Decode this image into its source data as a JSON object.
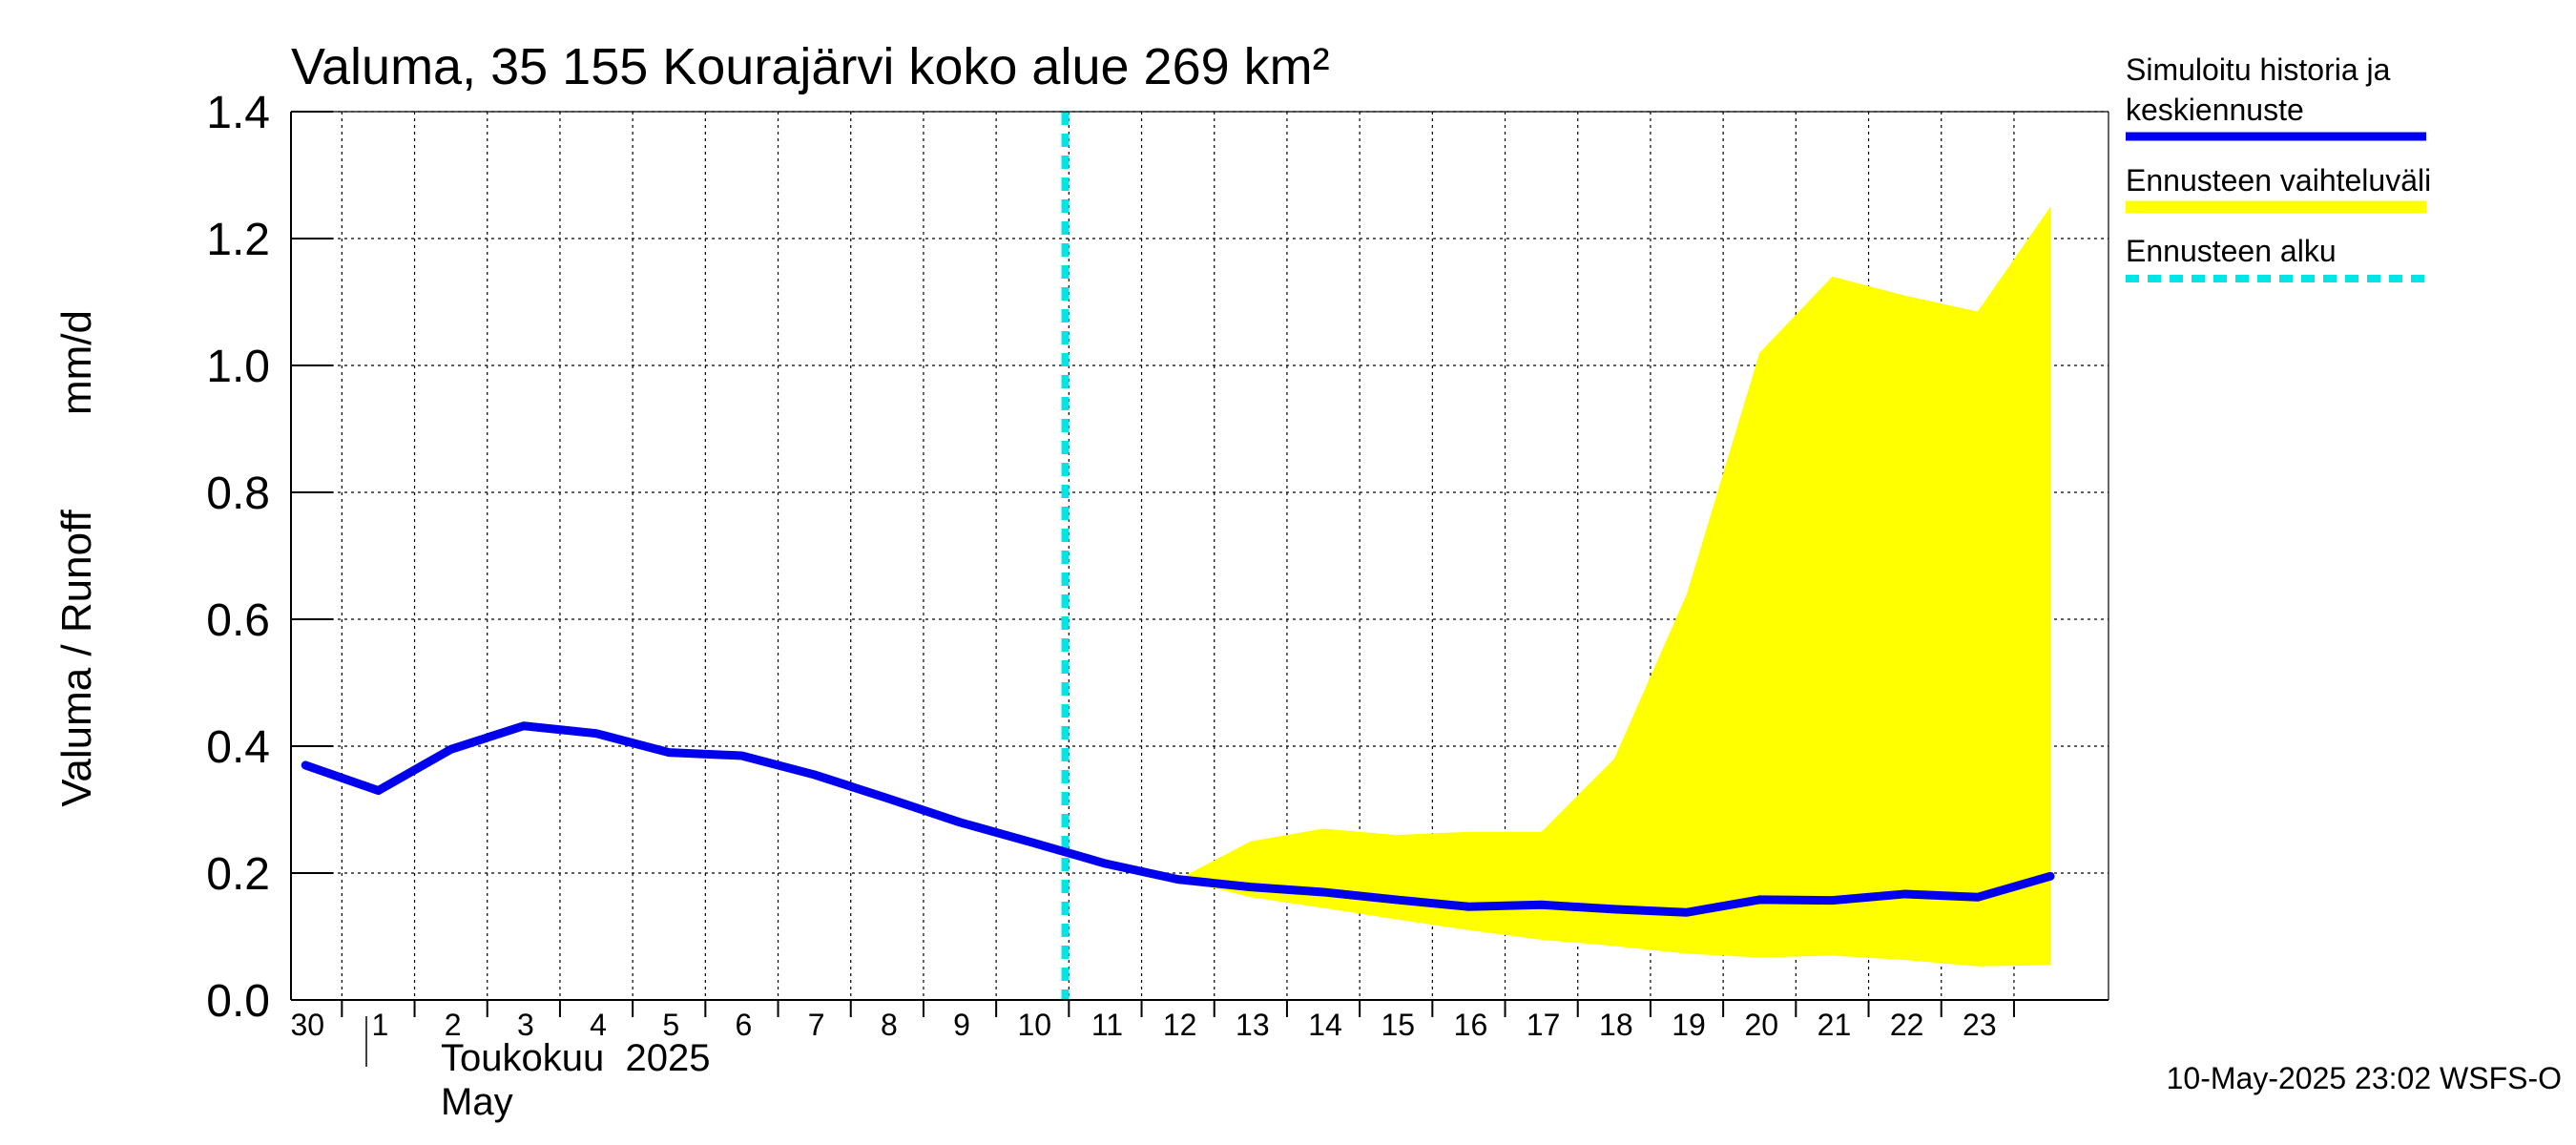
{
  "chart_data": {
    "type": "line",
    "title": "Valuma, 35 155 Kourajärvi koko alue 269 km²",
    "ylabel_left": "Valuma / Runoff",
    "ylabel_unit": "mm/d",
    "ylim": [
      0,
      1.4
    ],
    "yticks": [
      "0.0",
      "0.2",
      "0.4",
      "0.6",
      "0.8",
      "1.0",
      "1.2",
      "1.4"
    ],
    "grid": true,
    "x_tick_labels": [
      "30",
      "1",
      "2",
      "3",
      "4",
      "5",
      "6",
      "7",
      "8",
      "9",
      "10",
      "11",
      "12",
      "13",
      "14",
      "15",
      "16",
      "17",
      "18",
      "19",
      "20",
      "21",
      "22",
      "23"
    ],
    "month_label_fi": "Toukokuu  2025",
    "month_label_en": "May",
    "forecast_start_day": 10,
    "series": [
      {
        "name": "Simuloitu historia ja keskiennuste",
        "color": "#0000ee",
        "points": [
          [
            -1.0,
            0.37
          ],
          [
            0.0,
            0.33
          ],
          [
            1.0,
            0.395
          ],
          [
            2.0,
            0.432
          ],
          [
            3.0,
            0.42
          ],
          [
            4.0,
            0.39
          ],
          [
            5.0,
            0.385
          ],
          [
            6.0,
            0.355
          ],
          [
            7.0,
            0.318
          ],
          [
            8.0,
            0.28
          ],
          [
            9.0,
            0.248
          ],
          [
            10.0,
            0.215
          ],
          [
            11.0,
            0.19
          ],
          [
            12.0,
            0.178
          ],
          [
            13.0,
            0.17
          ],
          [
            14.0,
            0.158
          ],
          [
            15.0,
            0.147
          ],
          [
            16.0,
            0.15
          ],
          [
            17.0,
            0.143
          ],
          [
            18.0,
            0.138
          ],
          [
            19.0,
            0.158
          ],
          [
            20.0,
            0.157
          ],
          [
            21.0,
            0.167
          ],
          [
            22.0,
            0.162
          ],
          [
            23.0,
            0.195
          ]
        ]
      },
      {
        "name": "Ennusteen vaihteluväli",
        "color": "#ffff00",
        "upper": [
          [
            11.0,
            0.19
          ],
          [
            12.0,
            0.25
          ],
          [
            13.0,
            0.27
          ],
          [
            14.0,
            0.26
          ],
          [
            15.0,
            0.265
          ],
          [
            16.0,
            0.265
          ],
          [
            17.0,
            0.38
          ],
          [
            18.0,
            0.64
          ],
          [
            19.0,
            1.02
          ],
          [
            20.0,
            1.14
          ],
          [
            21.0,
            1.11
          ],
          [
            22.0,
            1.085
          ],
          [
            23.0,
            1.25
          ]
        ],
        "lower": [
          [
            11.0,
            0.19
          ],
          [
            12.0,
            0.162
          ],
          [
            13.0,
            0.145
          ],
          [
            14.0,
            0.127
          ],
          [
            15.0,
            0.11
          ],
          [
            16.0,
            0.095
          ],
          [
            17.0,
            0.085
          ],
          [
            18.0,
            0.073
          ],
          [
            19.0,
            0.067
          ],
          [
            20.0,
            0.07
          ],
          [
            21.0,
            0.063
          ],
          [
            22.0,
            0.053
          ],
          [
            23.0,
            0.055
          ]
        ]
      }
    ],
    "forecast_line": {
      "name": "Ennusteen alku",
      "color": "#00e5e5",
      "x": 9.45
    }
  },
  "legend": {
    "items": [
      {
        "label_line1": "Simuloitu historia ja",
        "label_line2": "keskiennuste",
        "color": "#0000ee",
        "style": "solid"
      },
      {
        "label_line1": "Ennusteen vaihteluväli",
        "label_line2": "",
        "color": "#ffff00",
        "style": "solid"
      },
      {
        "label_line1": "Ennusteen alku",
        "label_line2": "",
        "color": "#00e5e5",
        "style": "dashed"
      }
    ]
  },
  "footer": "10-May-2025 23:02 WSFS-O"
}
